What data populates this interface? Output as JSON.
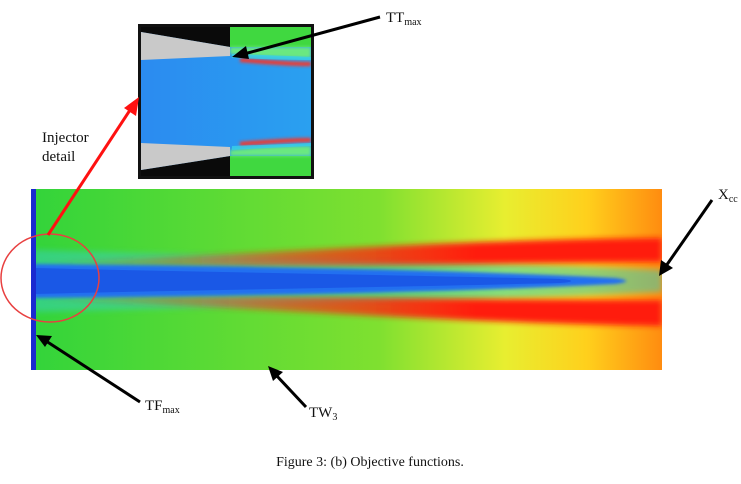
{
  "figure": {
    "caption": "Figure 3:  (b) Objective functions.",
    "labels": {
      "tt_max": {
        "main": "TT",
        "sub": "max"
      },
      "x_cc": {
        "main": "X",
        "sub": "cc"
      },
      "tf_max": {
        "main": "TF",
        "sub": "max"
      },
      "tw3": {
        "main": "TW",
        "sub": "3"
      },
      "injector_line1": "Injector",
      "injector_line2": "detail"
    },
    "colors": {
      "flow_background": "#39d83a",
      "core": "#1f6ef0",
      "hot_band": "#ff1a0a",
      "yellow": "#ffe020",
      "orange": "#ff8a10",
      "injector_wall": "#1a2ad0",
      "callout_circle": "#e84040",
      "callout_arrow": "#ff1111",
      "arrow": "#000000"
    }
  }
}
